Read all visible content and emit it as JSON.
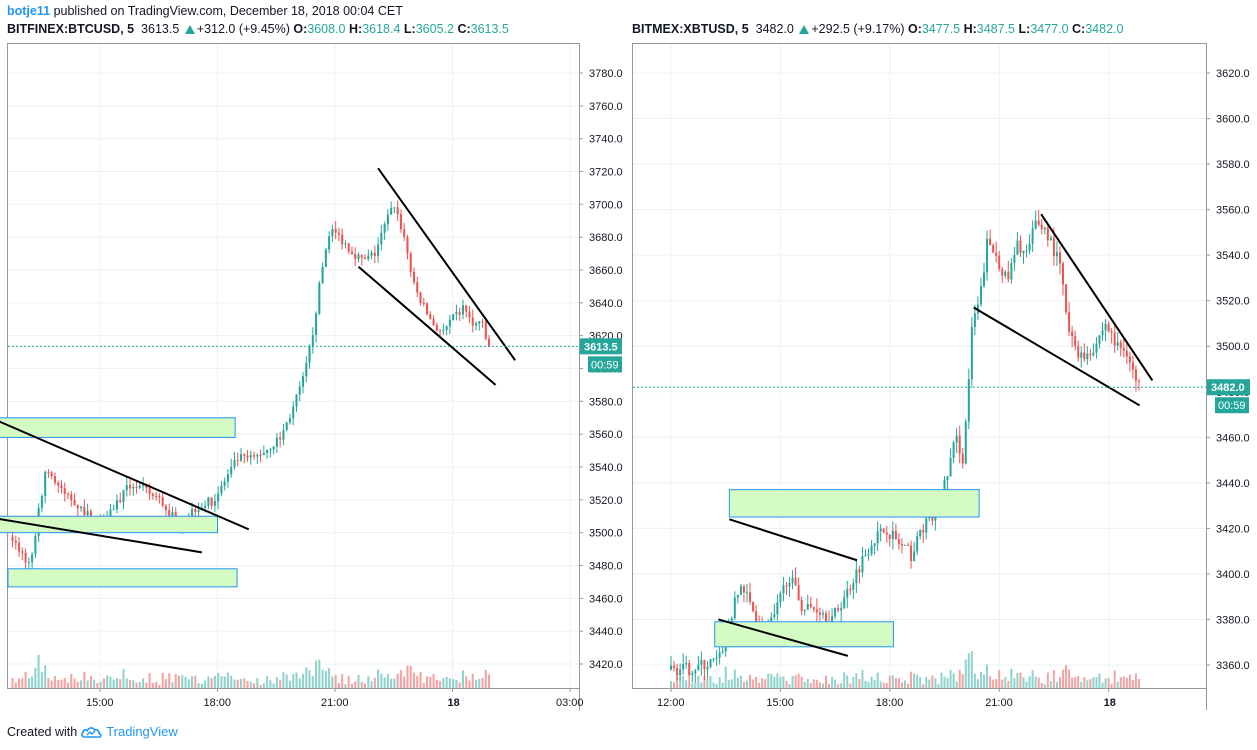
{
  "header": {
    "user": "botje11",
    "text": "published on TradingView.com, December 18, 2018 00:04 CET"
  },
  "footer": {
    "created_with": "Created with",
    "brand": "TradingView"
  },
  "colors": {
    "up": "#26a69a",
    "down": "#ef5350",
    "accent": "#2196f3",
    "zone_fill": "#d4fbc4",
    "zone_border": "#2196f3"
  },
  "charts": [
    {
      "symbol": "BITFINEX:BTCUSD, 5",
      "last": "3613.5",
      "change": "+312.0 (+9.45%)",
      "o_label": "O:",
      "o": "3608.0",
      "h_label": "H:",
      "h": "3618.4",
      "l_label": "L:",
      "l": "3605.2",
      "c_label": "C:",
      "c": "3613.5",
      "price_tag": "3613.5",
      "countdown": "00:59"
    },
    {
      "symbol": "BITMEX:XBTUSD, 5",
      "last": "3482.0",
      "change": "+292.5 (+9.17%)",
      "o_label": "O:",
      "o": "3477.5",
      "h_label": "H:",
      "h": "3487.5",
      "l_label": "L:",
      "l": "3477.0",
      "c_label": "C:",
      "c": "3482.0",
      "price_tag": "3482.0",
      "countdown": "00:59"
    }
  ],
  "chart_data": [
    {
      "type": "candlestick",
      "title": "BITFINEX:BTCUSD, 5",
      "yticks": [
        "3420.0",
        "3440.0",
        "3460.0",
        "3480.0",
        "3500.0",
        "3520.0",
        "3540.0",
        "3560.0",
        "3580.0",
        "3600.0",
        "3620.0",
        "3640.0",
        "3660.0",
        "3680.0",
        "3700.0",
        "3720.0",
        "3740.0",
        "3760.0",
        "3780.0"
      ],
      "xticks": [
        "15:00",
        "18:00",
        "21:00",
        "18",
        "03:00"
      ],
      "ylim": [
        3407,
        3808
      ],
      "last_price": 3613.5,
      "path": [
        [
          12.6,
          3420
        ],
        [
          12.75,
          3500
        ],
        [
          13.0,
          3490
        ],
        [
          13.3,
          3480
        ],
        [
          13.7,
          3540
        ],
        [
          14.1,
          3525
        ],
        [
          14.4,
          3520
        ],
        [
          15.0,
          3505
        ],
        [
          15.4,
          3515
        ],
        [
          15.9,
          3530
        ],
        [
          16.6,
          3520
        ],
        [
          17.1,
          3505
        ],
        [
          17.5,
          3515
        ],
        [
          18.0,
          3520
        ],
        [
          18.6,
          3545
        ],
        [
          19.0,
          3545
        ],
        [
          19.4,
          3552
        ],
        [
          19.7,
          3558
        ],
        [
          20.0,
          3575
        ],
        [
          20.3,
          3595
        ],
        [
          20.5,
          3620
        ],
        [
          20.75,
          3660
        ],
        [
          20.95,
          3685
        ],
        [
          21.2,
          3680
        ],
        [
          21.5,
          3672
        ],
        [
          21.8,
          3665
        ],
        [
          22.1,
          3670
        ],
        [
          22.4,
          3690
        ],
        [
          22.6,
          3700
        ],
        [
          22.85,
          3680
        ],
        [
          23.1,
          3650
        ],
        [
          23.4,
          3635
        ],
        [
          23.65,
          3625
        ],
        [
          23.85,
          3622
        ],
        [
          24.1,
          3630
        ],
        [
          24.4,
          3638
        ],
        [
          24.6,
          3625
        ],
        [
          24.8,
          3630
        ],
        [
          24.98,
          3613.5
        ]
      ],
      "zones": [
        [
          12.0,
          18.45,
          3558,
          3570
        ],
        [
          12.4,
          18.0,
          3500,
          3510
        ],
        [
          12.65,
          18.5,
          3467,
          3478
        ]
      ],
      "trendlines": [
        [
          12.4,
          3568,
          18.8,
          3502
        ],
        [
          12.0,
          3510,
          17.6,
          3488
        ],
        [
          22.1,
          3722,
          25.6,
          3605
        ],
        [
          21.6,
          3662,
          25.1,
          3590
        ]
      ],
      "volume": "bars at bottom of pane, spike at start and near 20:00"
    },
    {
      "type": "candlestick",
      "title": "BITMEX:XBTUSD, 5",
      "yticks": [
        "3360.0",
        "3380.0",
        "3400.0",
        "3420.0",
        "3440.0",
        "3460.0",
        "3480.0",
        "3500.0",
        "3520.0",
        "3540.0",
        "3560.0",
        "3580.0",
        "3600.0",
        "3620.0"
      ],
      "xticks": [
        "12:00",
        "15:00",
        "18:00",
        "21:00",
        "18"
      ],
      "ylim": [
        3350,
        3640
      ],
      "last_price": 3482.0,
      "path": [
        [
          12.0,
          3358
        ],
        [
          12.5,
          3358
        ],
        [
          13.0,
          3360
        ],
        [
          13.4,
          3362
        ],
        [
          13.7,
          3380
        ],
        [
          14.0,
          3395
        ],
        [
          14.3,
          3385
        ],
        [
          14.6,
          3375
        ],
        [
          14.9,
          3380
        ],
        [
          15.3,
          3400
        ],
        [
          15.7,
          3385
        ],
        [
          16.1,
          3385
        ],
        [
          16.5,
          3380
        ],
        [
          16.85,
          3390
        ],
        [
          17.2,
          3402
        ],
        [
          17.6,
          3415
        ],
        [
          18.0,
          3420
        ],
        [
          18.4,
          3412
        ],
        [
          18.7,
          3408
        ],
        [
          18.95,
          3420
        ],
        [
          19.3,
          3425
        ],
        [
          19.6,
          3440
        ],
        [
          19.9,
          3460
        ],
        [
          20.1,
          3450
        ],
        [
          20.35,
          3510
        ],
        [
          20.55,
          3520
        ],
        [
          20.75,
          3545
        ],
        [
          21.0,
          3540
        ],
        [
          21.3,
          3528
        ],
        [
          21.6,
          3545
        ],
        [
          21.85,
          3540
        ],
        [
          22.1,
          3555
        ],
        [
          22.4,
          3550
        ],
        [
          22.75,
          3535
        ],
        [
          23.0,
          3505
        ],
        [
          23.35,
          3495
        ],
        [
          23.7,
          3500
        ],
        [
          24.0,
          3510
        ],
        [
          24.3,
          3500
        ],
        [
          24.6,
          3498
        ],
        [
          24.87,
          3482
        ]
      ],
      "zones": [
        [
          13.6,
          20.45,
          3425,
          3437
        ],
        [
          13.2,
          18.1,
          3368,
          3379
        ]
      ],
      "trendlines": [
        [
          13.6,
          3424,
          17.1,
          3406
        ],
        [
          13.3,
          3380,
          16.85,
          3364
        ],
        [
          22.15,
          3558,
          25.2,
          3485
        ],
        [
          20.3,
          3517,
          24.85,
          3474
        ]
      ],
      "volume": "bars at bottom of pane"
    }
  ]
}
